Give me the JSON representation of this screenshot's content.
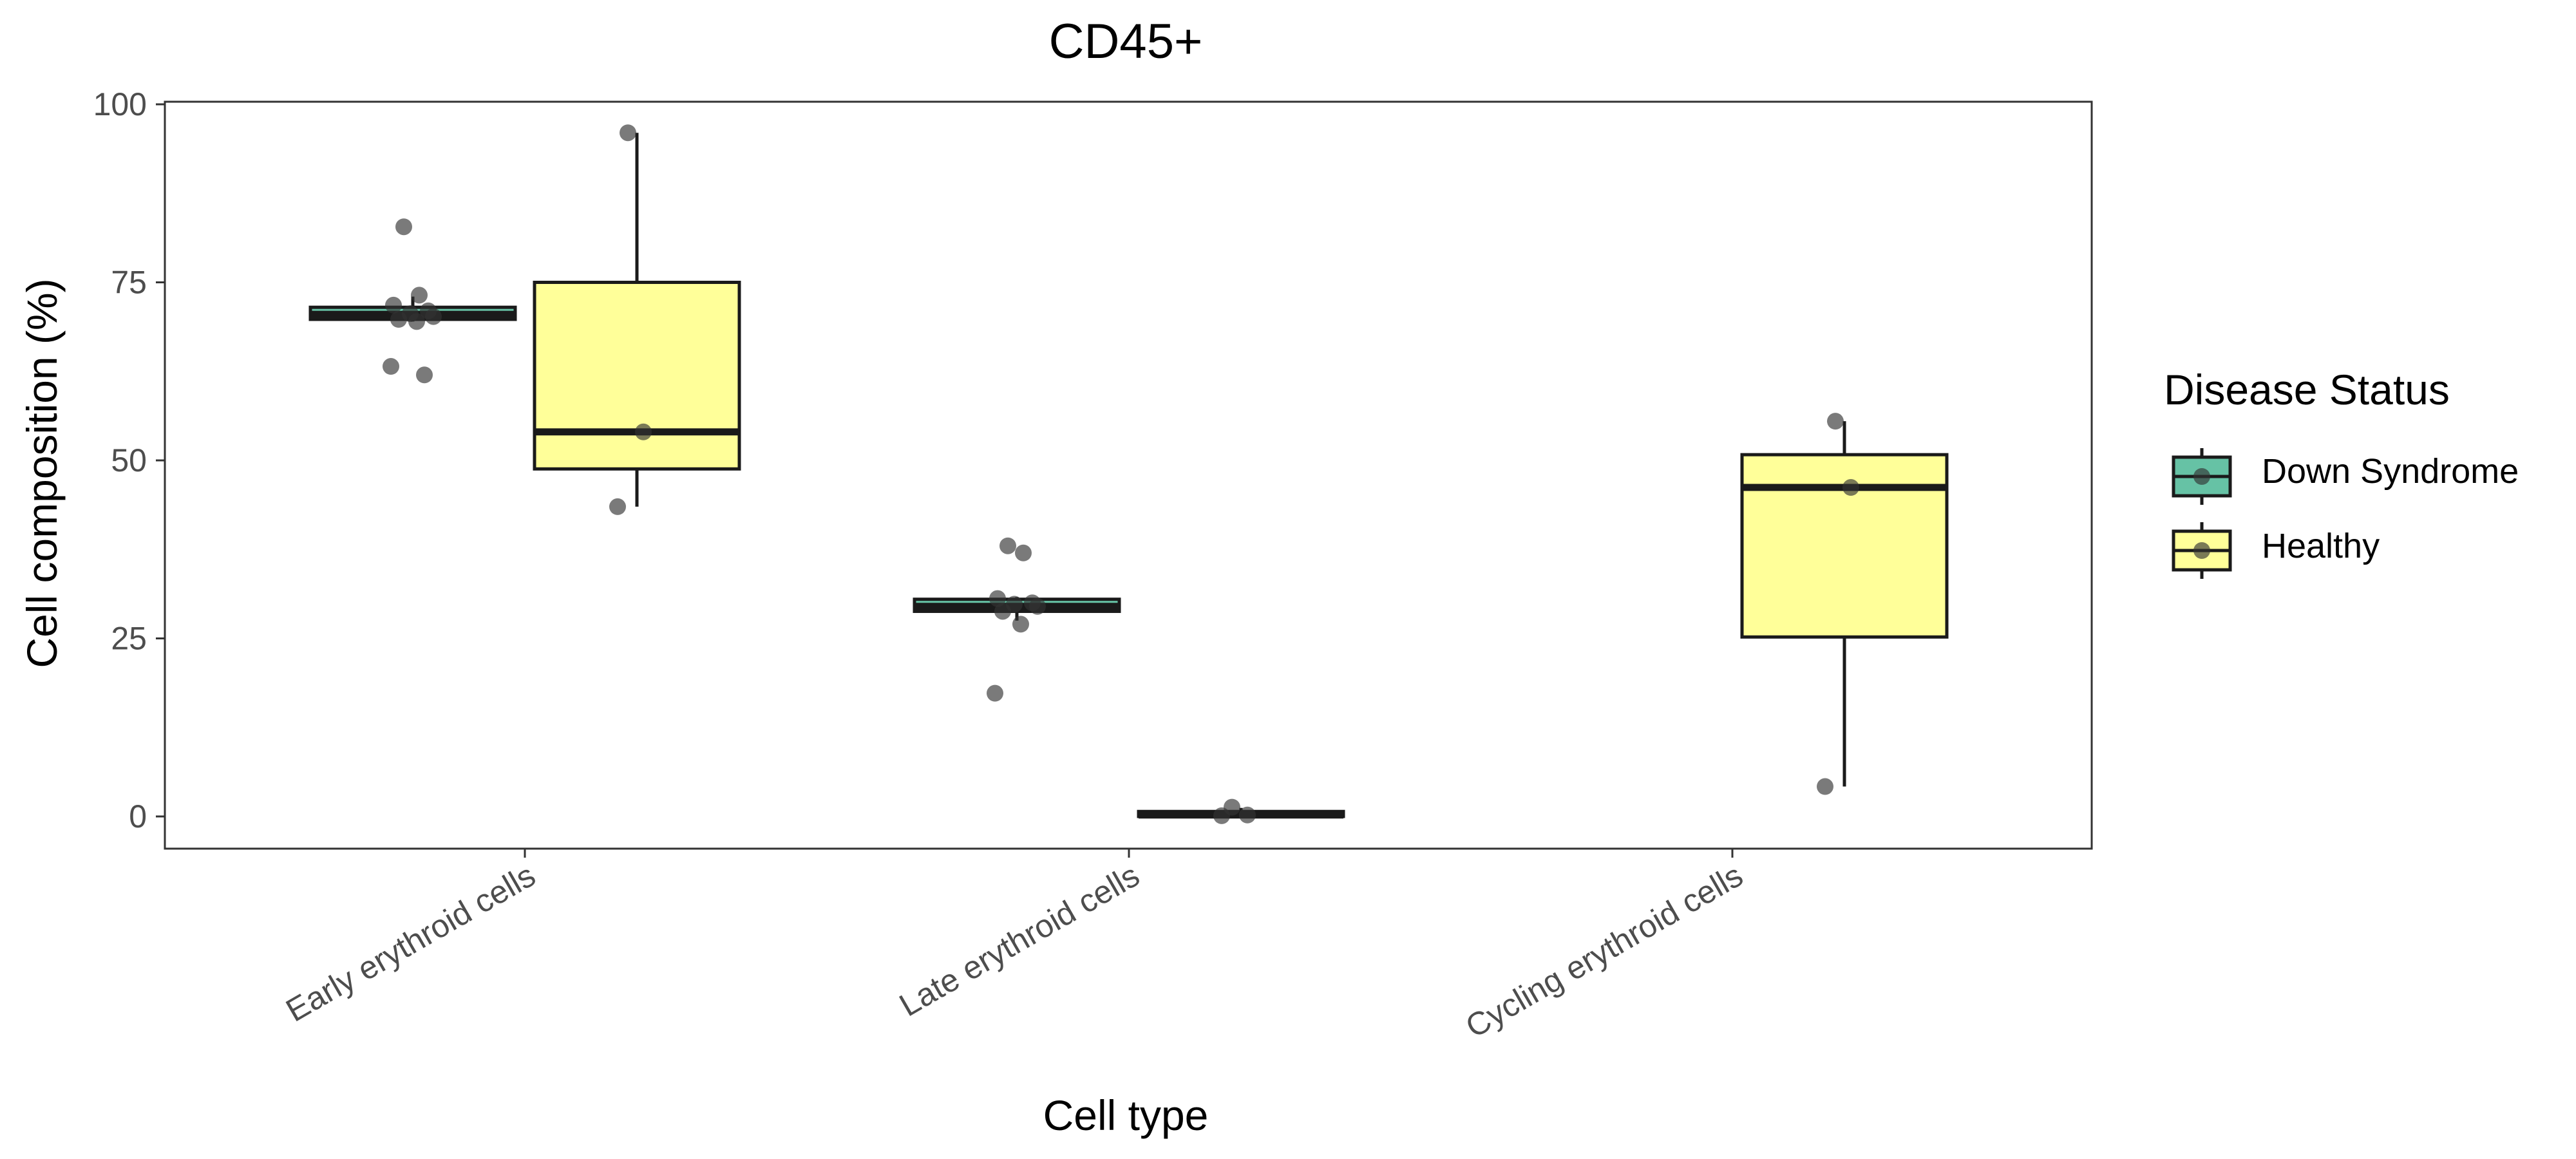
{
  "chart_data": {
    "type": "box",
    "title": "CD45+",
    "xlabel": "Cell type",
    "ylabel": "Cell composition (%)",
    "ylim": [
      -5,
      104
    ],
    "yticks": [
      0,
      25,
      50,
      75,
      100
    ],
    "categories": [
      "Early erythroid cells",
      "Late erythroid cells",
      "Cycling erythroid cells"
    ],
    "legend": {
      "title": "Disease Status",
      "position": "right",
      "entries": [
        "Down Syndrome",
        "Healthy"
      ]
    },
    "colors": {
      "Down Syndrome": "#66c2a5",
      "Healthy": "#ffff99",
      "box_stroke": "#1a1a1a",
      "point": "#333333"
    },
    "grid": false,
    "series": [
      {
        "name": "Down Syndrome",
        "boxes": [
          {
            "category": "Early erythroid cells",
            "min": 69.5,
            "q1": 69.8,
            "median": 70.5,
            "q3": 71.5,
            "max": 73.0,
            "points": [
              82.8,
              73.2,
              71.8,
              71.0,
              70.6,
              70.2,
              69.8,
              69.5,
              63.2,
              62.0
            ]
          },
          {
            "category": "Late erythroid cells",
            "min": 27.5,
            "q1": 28.8,
            "median": 29.5,
            "q3": 30.5,
            "max": 30.8,
            "points": [
              38.0,
              37.0,
              30.6,
              30.0,
              29.8,
              29.5,
              28.8,
              27.0,
              17.3
            ]
          }
        ]
      },
      {
        "name": "Healthy",
        "boxes": [
          {
            "category": "Early erythroid cells",
            "min": 43.5,
            "q1": 48.8,
            "median": 54.0,
            "q3": 75.0,
            "max": 96.0,
            "points": [
              96.0,
              54.0,
              43.5
            ]
          },
          {
            "category": "Late erythroid cells",
            "min": 0.0,
            "q1": 0.0,
            "median": 0.2,
            "q3": 0.7,
            "max": 1.2,
            "points": [
              1.3,
              0.2,
              0.1
            ]
          },
          {
            "category": "Cycling erythroid cells",
            "min": 4.2,
            "q1": 25.2,
            "median": 46.2,
            "q3": 50.8,
            "max": 55.5,
            "points": [
              55.5,
              46.2,
              4.2
            ]
          }
        ]
      }
    ]
  }
}
